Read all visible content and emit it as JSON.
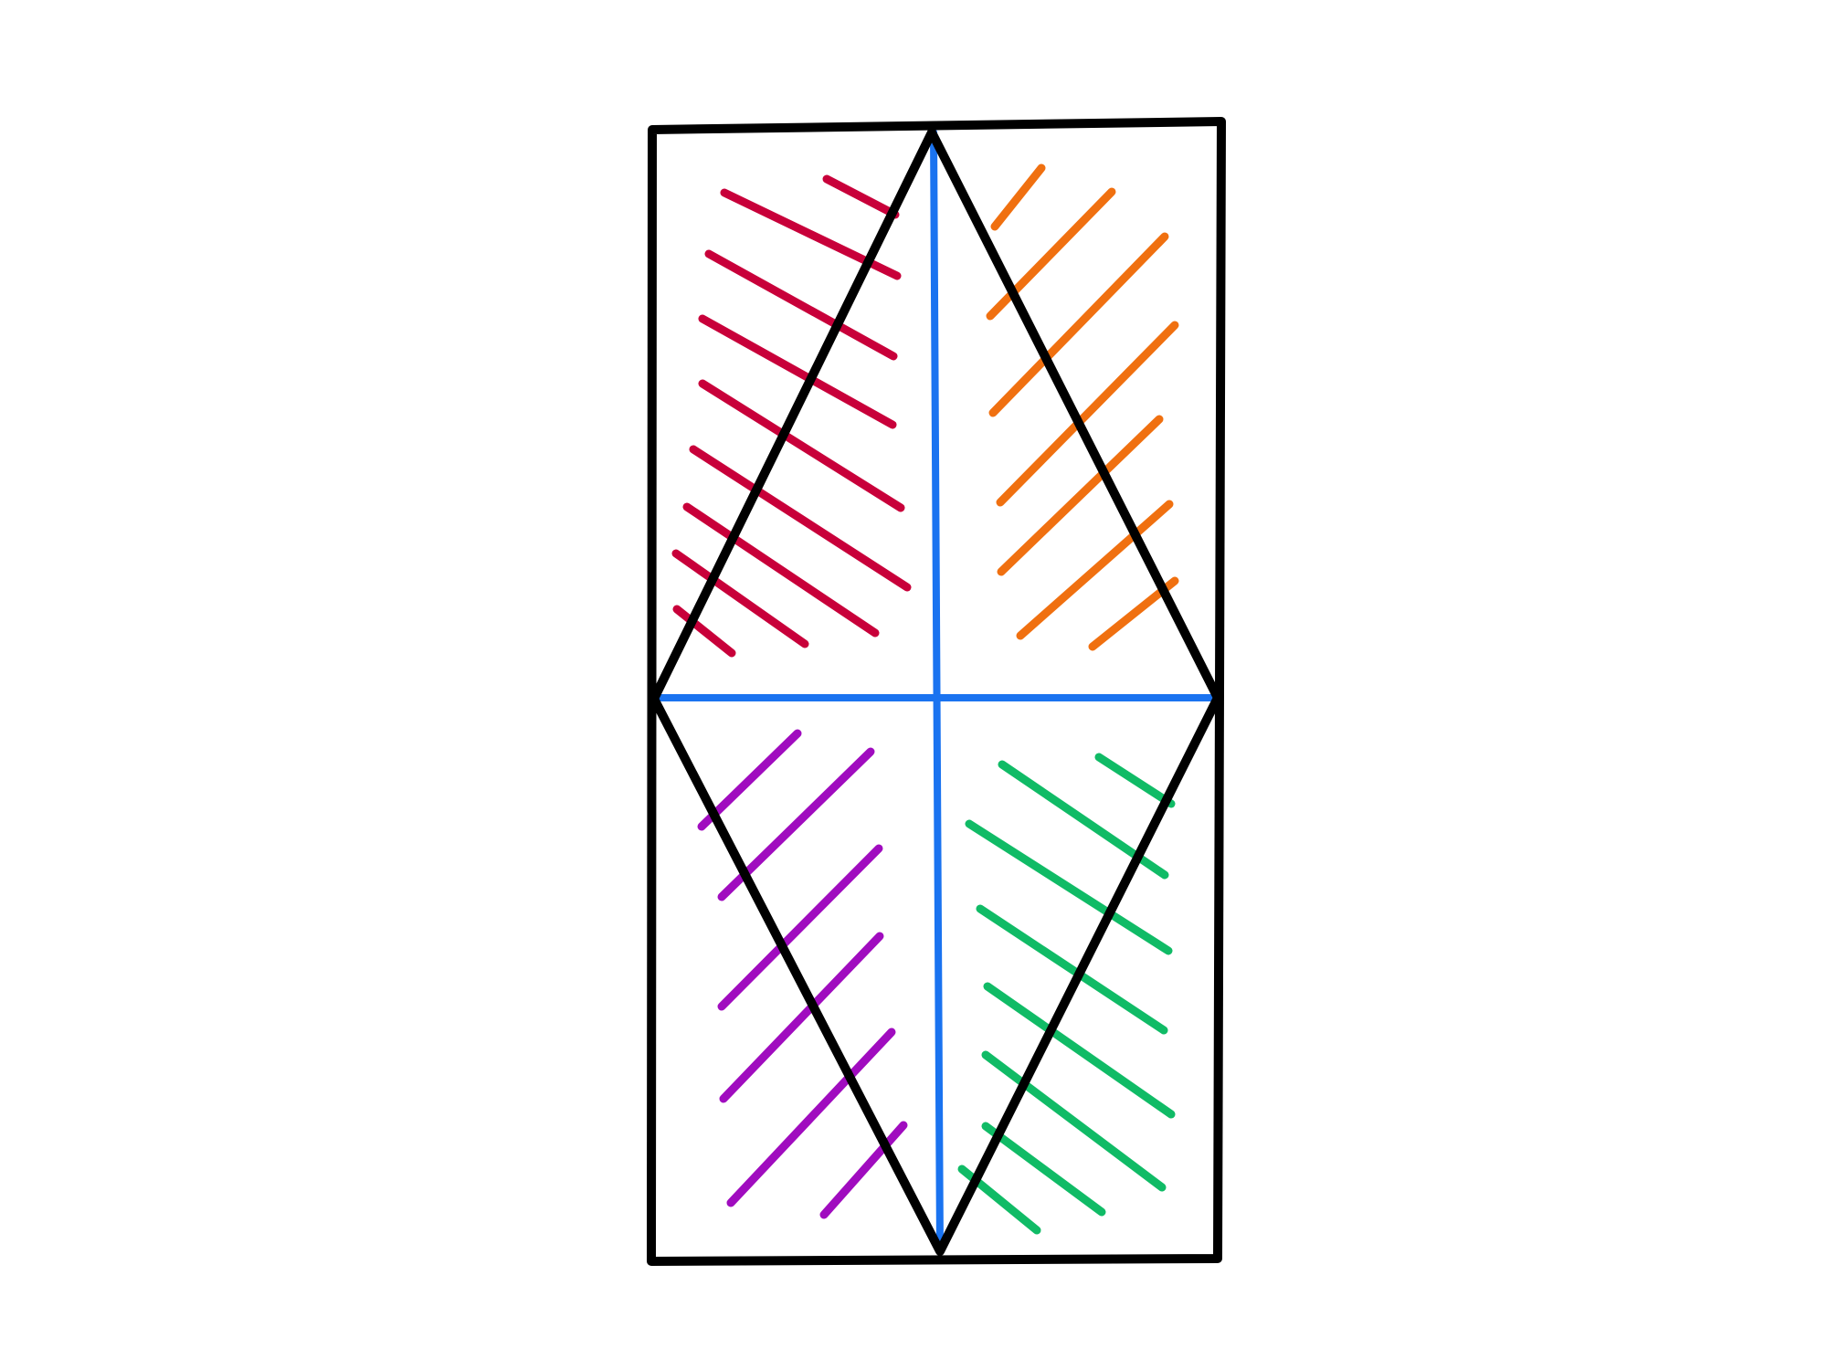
{
  "figure": {
    "description_free": true,
    "colors": {
      "outline": "#000000",
      "axes": "#1a73f0",
      "hatch_top_left": "#c8003a",
      "hatch_top_right": "#f07010",
      "hatch_bottom_left": "#a00cbf",
      "hatch_bottom_right": "#10bb66"
    },
    "regions": [
      "hatch-top-left",
      "hatch-top-right",
      "hatch-bottom-left",
      "hatch-bottom-right"
    ]
  }
}
